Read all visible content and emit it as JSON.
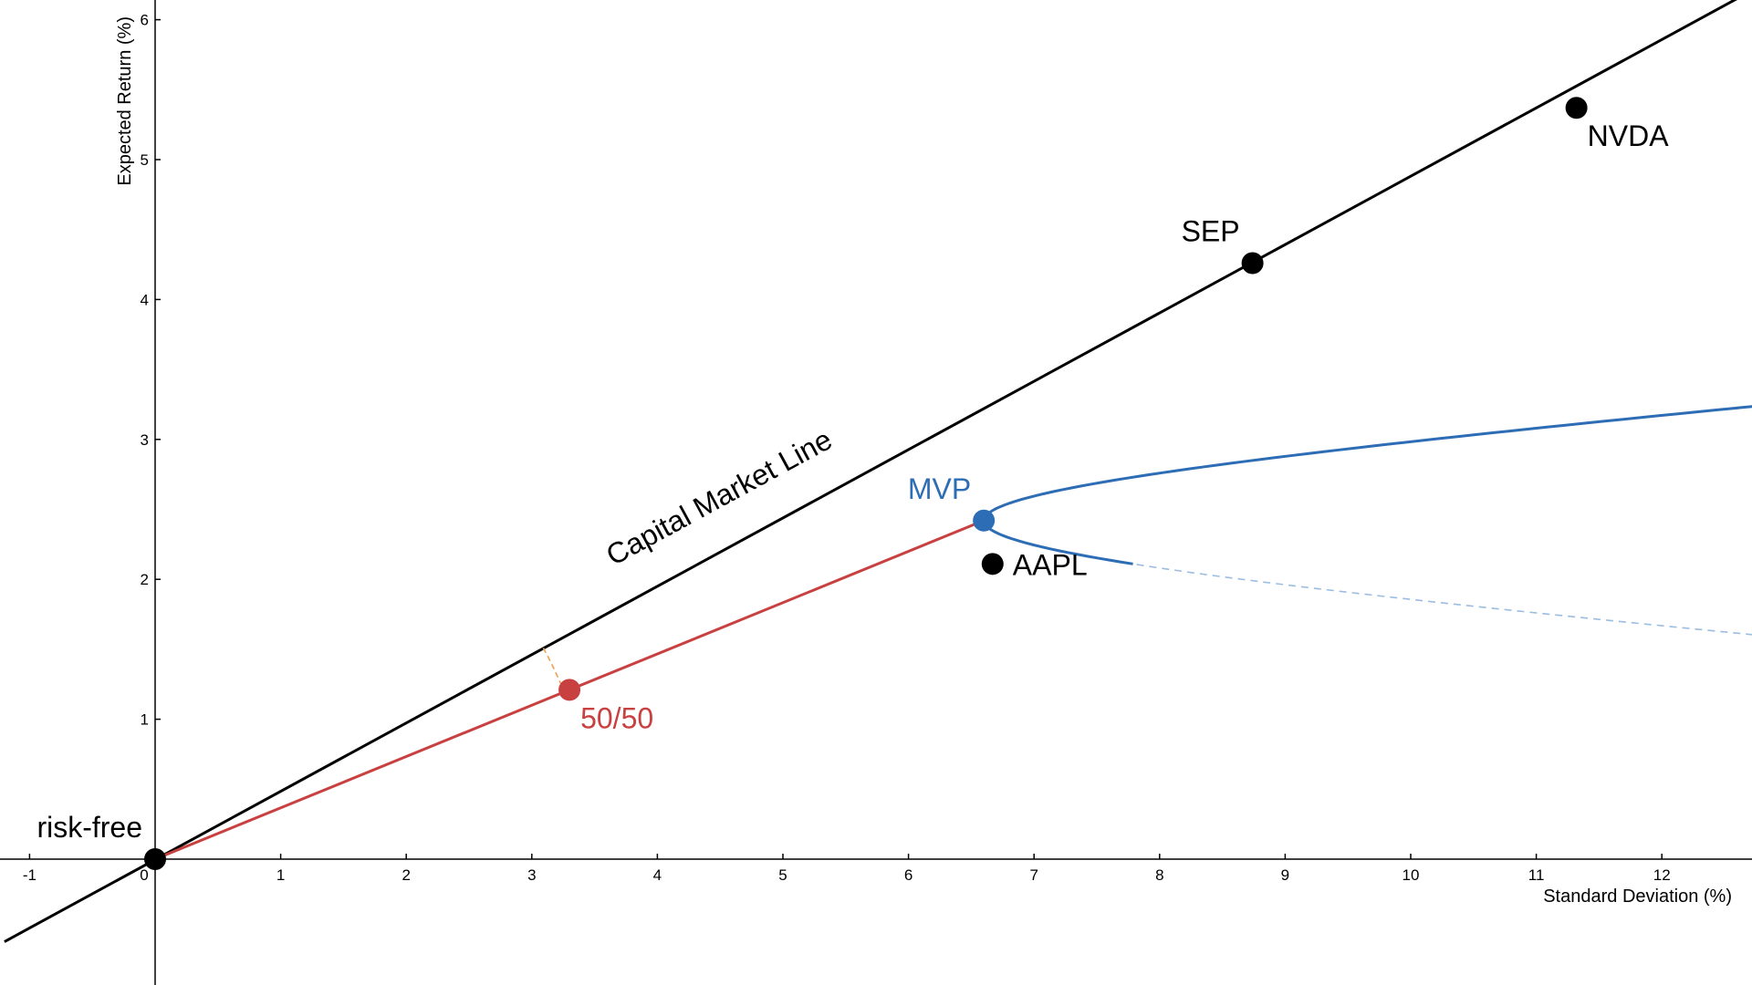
{
  "chart_data": {
    "type": "line",
    "xlabel": "Standard Deviation (%)",
    "ylabel": "Expected Return (%)",
    "xlim": [
      -1.2,
      12.7
    ],
    "ylim": [
      -0.9,
      6.1
    ],
    "grid": false,
    "x_ticks": [
      -1,
      0,
      1,
      2,
      3,
      4,
      5,
      6,
      7,
      8,
      9,
      10,
      11,
      12
    ],
    "y_ticks": [
      1,
      2,
      3,
      4,
      5,
      6
    ],
    "colors": {
      "cml": "#000000",
      "frontier": "#2d6db5",
      "frontier_dashed": "#9bbde0",
      "portfolio": "#c94040",
      "angle": "#f0a050",
      "points": "#000000"
    },
    "capital_market_line": {
      "label": "Capital Market Line",
      "from": [
        -1.2,
        -0.59
      ],
      "to": [
        12.7,
        6.2
      ]
    },
    "efficient_frontier": {
      "mvp": [
        6.6,
        2.42
      ],
      "b": 0.075,
      "solid_range": [
        2.42,
        5.37
      ],
      "dashed_range": [
        -0.9,
        5.9
      ]
    },
    "portfolio_line": {
      "from": [
        0,
        0
      ],
      "to": [
        6.6,
        2.42
      ]
    },
    "angle_arc": {
      "center": [
        0,
        0
      ],
      "radius": 3.52
    },
    "points": [
      {
        "label": "risk-free",
        "x": 0,
        "y": 0,
        "color": "#000000",
        "label_pos": "upper-left"
      },
      {
        "label": "50/50",
        "x": 3.3,
        "y": 1.21,
        "color": "#c94040",
        "label_pos": "lower-right"
      },
      {
        "label": "MVP",
        "x": 6.6,
        "y": 2.42,
        "color": "#2d6db5",
        "label_pos": "upper-left"
      },
      {
        "label": "AAPL",
        "x": 6.67,
        "y": 2.11,
        "color": "#000000",
        "label_pos": "right"
      },
      {
        "label": "SEP",
        "x": 8.74,
        "y": 4.26,
        "color": "#000000",
        "label_pos": "upper-left"
      },
      {
        "label": "NVDA",
        "x": 11.32,
        "y": 5.37,
        "color": "#000000",
        "label_pos": "lower-right"
      }
    ]
  }
}
